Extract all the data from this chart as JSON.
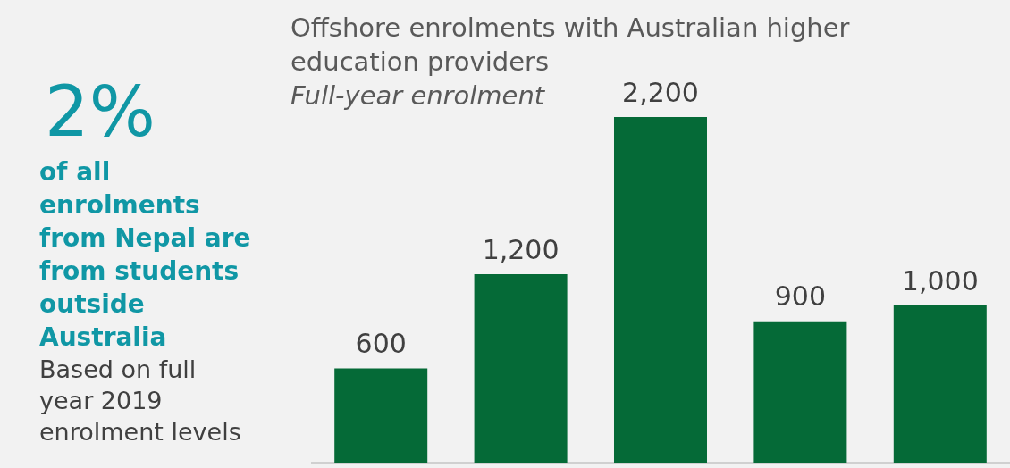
{
  "chart_data": {
    "type": "bar",
    "title": "Offshore enrolments with Australian higher education providers",
    "subtitle": "Full-year enrolment",
    "categories": [
      null,
      null,
      null,
      null,
      null
    ],
    "values": [
      600,
      1200,
      2200,
      900,
      1000
    ],
    "color": "#056a37",
    "value_labels": [
      "600",
      "1,200",
      "2,200",
      "900",
      "1,000"
    ],
    "legend": false,
    "grid": false,
    "annotations": [
      "2%",
      "of all enrolments from Nepal are from students outside Australia",
      "Based on full year 2019 enrolment levels"
    ]
  }
}
